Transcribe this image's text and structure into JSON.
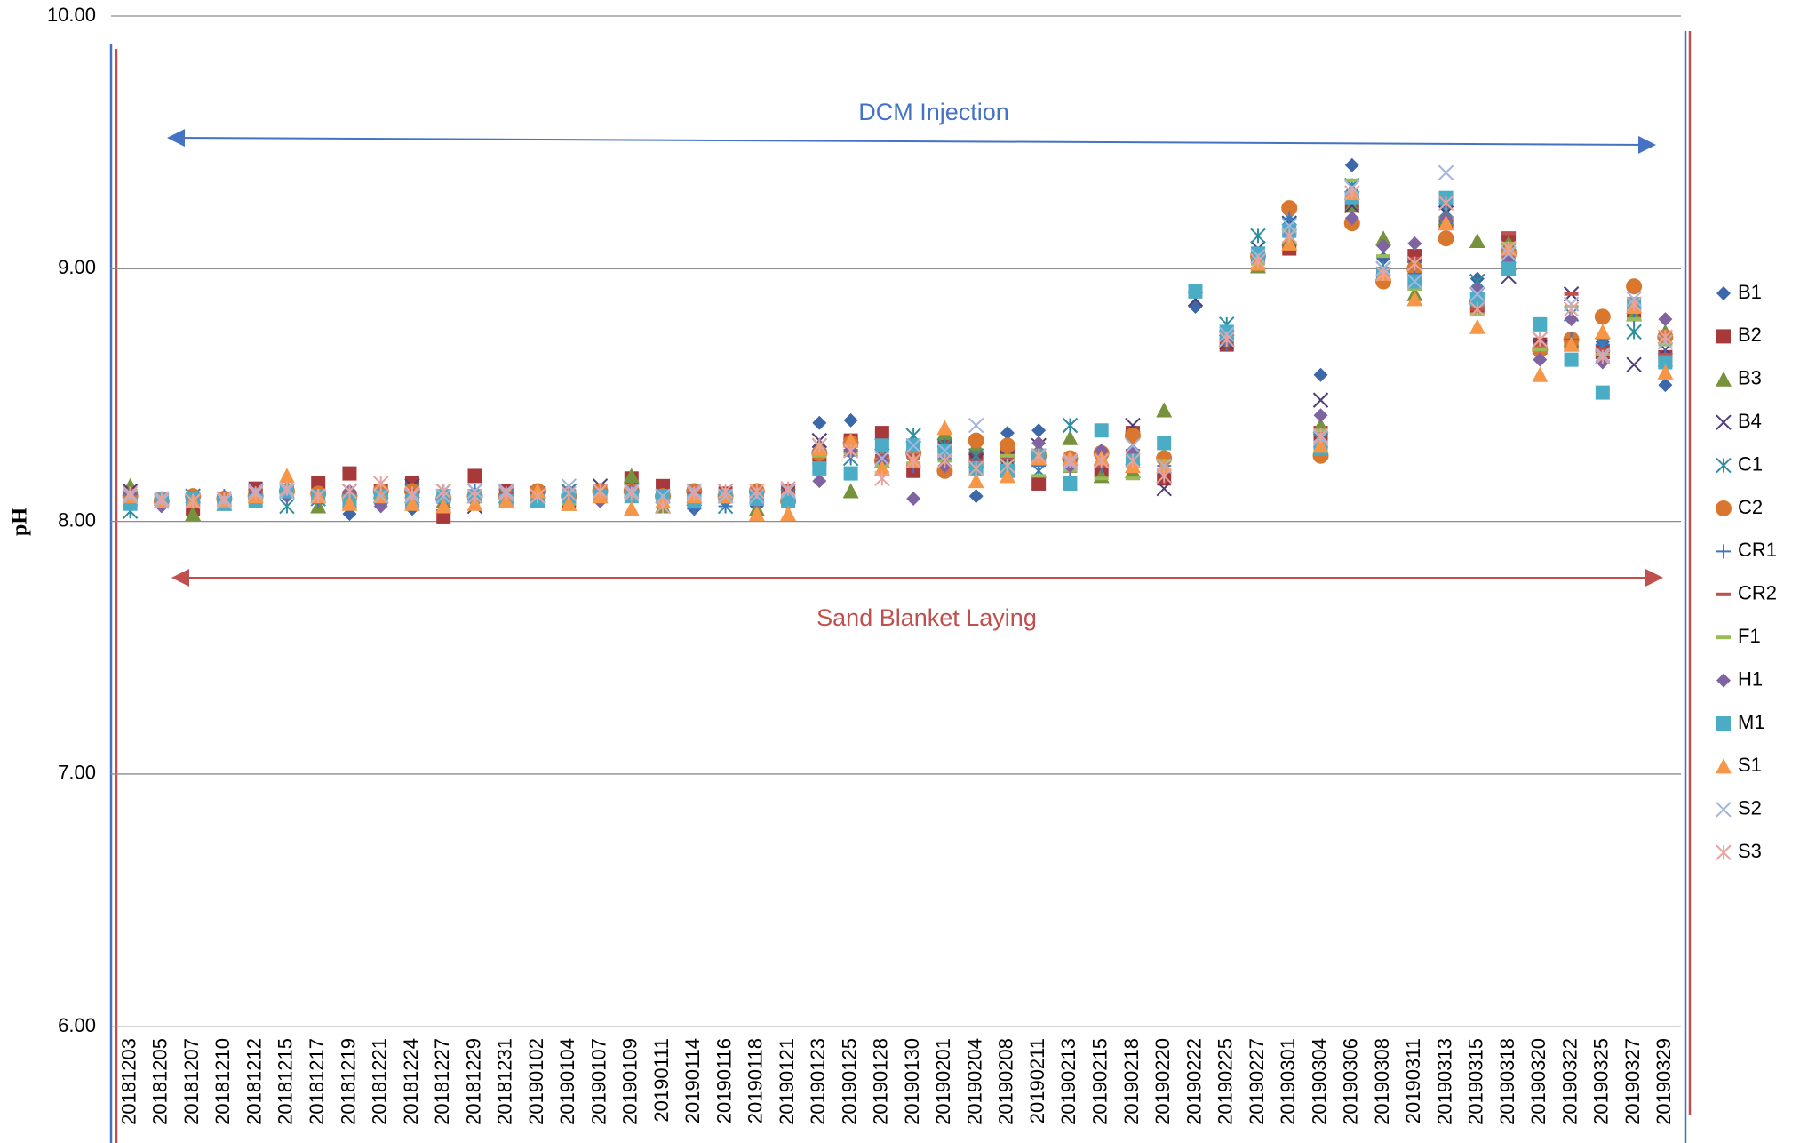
{
  "chart_data": {
    "type": "scatter",
    "y_label": "pH",
    "annotations": [
      "DCM Injection",
      "Sand Blanket Laying"
    ],
    "categories": [
      "20181203",
      "20181205",
      "20181207",
      "20181210",
      "20181212",
      "20181215",
      "20181217",
      "20181219",
      "20181221",
      "20181224",
      "20181227",
      "20181229",
      "20181231",
      "20190102",
      "20190104",
      "20190107",
      "20190109",
      "20190111",
      "20190114",
      "20190116",
      "20190118",
      "20190121",
      "20190123",
      "20190125",
      "20190128",
      "20190130",
      "20190201",
      "20190204",
      "20190208",
      "20190211",
      "20190213",
      "20190215",
      "20190218",
      "20190220",
      "20190222",
      "20190225",
      "20190227",
      "20190301",
      "20190304",
      "20190306",
      "20190308",
      "20190311",
      "20190313",
      "20190315",
      "20190318",
      "20190320",
      "20190322",
      "20190325",
      "20190327",
      "20190329"
    ],
    "ylim": [
      5.54,
      10
    ],
    "yticks": [
      {
        "value": 6,
        "label": "6.00"
      },
      {
        "value": 7,
        "label": "7.00"
      },
      {
        "value": 8,
        "label": "8.00"
      },
      {
        "value": 9,
        "label": "9.00"
      },
      {
        "value": 10,
        "label": "10.00"
      }
    ],
    "grid": true,
    "legend": "right",
    "series": [
      {
        "name": "B1",
        "color": "#3c67a8",
        "marker": "diamond",
        "values": [
          8.12,
          8.07,
          8.06,
          8.07,
          8.1,
          8.13,
          8.08,
          8.03,
          8.07,
          8.05,
          8.06,
          8.08,
          8.1,
          8.08,
          8.1,
          8.09,
          8.1,
          8.08,
          8.05,
          8.08,
          8.06,
          8.07,
          8.39,
          8.4,
          8.25,
          8.25,
          8.25,
          8.1,
          8.35,
          8.36,
          8.24,
          8.22,
          8.22,
          8.2,
          8.85,
          8.73,
          9.05,
          9.15,
          8.58,
          9.41,
          9.04,
          9.05,
          9.25,
          8.96,
          9.05,
          8.68,
          8.7,
          8.71,
          8.85,
          8.54
        ]
      },
      {
        "name": "B2",
        "color": "#a8393a",
        "marker": "square",
        "values": [
          8.1,
          8.08,
          8.05,
          8.08,
          8.13,
          8.12,
          8.15,
          8.19,
          8.12,
          8.15,
          8.02,
          8.18,
          8.12,
          8.1,
          8.08,
          8.12,
          8.17,
          8.14,
          8.1,
          8.11,
          8.1,
          8.12,
          8.25,
          8.32,
          8.35,
          8.2,
          8.3,
          8.25,
          8.28,
          8.15,
          8.22,
          8.2,
          8.35,
          8.17,
          null,
          8.7,
          9.05,
          9.08,
          8.35,
          9.25,
          8.98,
          9.05,
          9.18,
          8.85,
          9.12,
          8.7,
          8.7,
          8.67,
          8.82,
          8.65
        ]
      },
      {
        "name": "B3",
        "color": "#76923c",
        "marker": "triangle",
        "values": [
          8.14,
          8.09,
          8.03,
          8.07,
          8.11,
          8.12,
          8.06,
          8.08,
          8.12,
          8.1,
          8.08,
          8.1,
          8.1,
          8.12,
          8.07,
          8.1,
          8.18,
          8.06,
          8.09,
          8.1,
          8.05,
          8.1,
          8.3,
          8.12,
          8.24,
          8.3,
          8.35,
          8.3,
          8.26,
          8.28,
          8.33,
          8.18,
          8.2,
          8.44,
          null,
          8.72,
          9.01,
          9.12,
          8.38,
          9.25,
          9.12,
          8.9,
          9.2,
          9.11,
          9.1,
          8.7,
          8.72,
          8.65,
          8.82,
          8.75
        ]
      },
      {
        "name": "B4",
        "color": "#4f3d7a",
        "marker": "x",
        "values": [
          8.12,
          8.08,
          8.1,
          8.09,
          8.12,
          8.12,
          8.1,
          8.12,
          8.1,
          8.14,
          8.1,
          8.06,
          8.12,
          8.11,
          8.12,
          8.14,
          8.12,
          8.1,
          8.1,
          8.12,
          8.1,
          8.12,
          8.32,
          8.3,
          8.26,
          8.29,
          8.27,
          8.24,
          8.25,
          8.3,
          8.38,
          8.25,
          8.38,
          8.13,
          8.88,
          8.71,
          9.08,
          9.18,
          8.48,
          9.25,
          9.0,
          9.02,
          9.22,
          8.95,
          8.97,
          8.69,
          8.9,
          8.7,
          8.62,
          8.68
        ]
      },
      {
        "name": "C1",
        "color": "#2f8ea0",
        "marker": "asterisk",
        "values": [
          8.04,
          8.08,
          8.1,
          8.08,
          8.1,
          8.06,
          8.09,
          8.12,
          8.1,
          8.12,
          8.12,
          8.12,
          8.1,
          8.1,
          8.12,
          8.12,
          8.12,
          8.1,
          8.1,
          8.06,
          8.1,
          8.1,
          8.3,
          8.25,
          8.3,
          8.34,
          8.3,
          8.26,
          8.22,
          8.2,
          8.38,
          8.25,
          8.25,
          8.22,
          null,
          8.78,
          9.13,
          9.2,
          8.32,
          9.33,
          9.0,
          9.0,
          9.23,
          8.95,
          9.05,
          8.72,
          8.82,
          8.7,
          8.75,
          8.64
        ]
      },
      {
        "name": "C2",
        "color": "#d9772f",
        "marker": "circle",
        "values": [
          8.1,
          8.08,
          8.1,
          8.09,
          8.1,
          8.12,
          8.11,
          8.1,
          8.12,
          8.12,
          8.09,
          8.1,
          8.1,
          8.12,
          8.1,
          8.12,
          8.12,
          8.1,
          8.12,
          8.1,
          8.12,
          8.08,
          8.27,
          8.31,
          8.24,
          8.27,
          8.2,
          8.32,
          8.3,
          8.26,
          8.25,
          8.27,
          8.34,
          8.25,
          null,
          null,
          9.05,
          9.24,
          8.26,
          9.18,
          8.95,
          9.0,
          9.12,
          8.87,
          9.06,
          8.68,
          8.72,
          8.81,
          8.93,
          8.73
        ]
      },
      {
        "name": "CR1",
        "color": "#4472c4",
        "marker": "plus",
        "values": [
          8.08,
          8.08,
          8.08,
          8.1,
          8.1,
          8.1,
          8.08,
          8.08,
          8.09,
          8.1,
          8.08,
          8.12,
          8.1,
          8.1,
          8.1,
          8.1,
          8.1,
          8.08,
          8.05,
          8.06,
          8.1,
          8.08,
          8.28,
          8.26,
          8.24,
          8.22,
          8.25,
          8.22,
          8.22,
          8.22,
          8.2,
          8.22,
          8.25,
          8.22,
          null,
          8.7,
          9.04,
          9.2,
          8.32,
          9.3,
          8.98,
          8.98,
          9.18,
          8.9,
          9.02,
          8.7,
          8.72,
          8.7,
          8.8,
          8.66
        ]
      },
      {
        "name": "CR2",
        "color": "#c0504d",
        "marker": "dash",
        "values": [
          8.11,
          8.09,
          8.09,
          8.08,
          8.12,
          8.11,
          8.12,
          8.11,
          8.11,
          8.12,
          8.1,
          8.12,
          8.11,
          8.11,
          8.12,
          8.12,
          8.13,
          8.12,
          8.11,
          8.11,
          8.1,
          8.11,
          8.27,
          8.28,
          8.26,
          8.26,
          8.28,
          8.24,
          8.25,
          8.24,
          8.24,
          8.22,
          8.28,
          8.2,
          null,
          8.72,
          9.06,
          9.14,
          8.36,
          9.28,
          9.0,
          9.04,
          9.2,
          8.84,
          9.14,
          8.7,
          8.9,
          8.68,
          8.84,
          8.66
        ]
      },
      {
        "name": "F1",
        "color": "#9bbb59",
        "marker": "dash",
        "values": [
          8.09,
          8.08,
          8.07,
          8.08,
          8.1,
          8.1,
          8.08,
          8.08,
          8.1,
          8.09,
          8.08,
          8.09,
          8.09,
          8.08,
          8.07,
          8.1,
          8.1,
          8.09,
          8.09,
          8.09,
          8.07,
          8.08,
          8.26,
          8.27,
          8.22,
          8.23,
          8.24,
          8.22,
          8.26,
          8.18,
          8.2,
          8.17,
          8.17,
          8.24,
          null,
          8.72,
          9.02,
          9.14,
          8.36,
          9.35,
          9.05,
          8.92,
          9.2,
          8.82,
          9.1,
          8.68,
          8.85,
          8.66,
          8.8,
          8.7
        ]
      },
      {
        "name": "H1",
        "color": "#8064a2",
        "marker": "diamond",
        "values": [
          8.11,
          8.06,
          8.08,
          8.08,
          8.11,
          8.1,
          8.1,
          8.12,
          8.06,
          8.08,
          8.08,
          8.1,
          8.1,
          8.08,
          8.12,
          8.08,
          8.12,
          8.1,
          8.1,
          8.1,
          8.08,
          8.09,
          8.16,
          8.28,
          8.24,
          8.09,
          8.22,
          8.22,
          8.2,
          8.31,
          8.22,
          8.28,
          8.28,
          8.2,
          null,
          8.72,
          9.05,
          9.15,
          8.42,
          9.2,
          9.09,
          9.1,
          9.2,
          8.92,
          9.04,
          8.64,
          8.8,
          8.63,
          8.86,
          8.8
        ]
      },
      {
        "name": "M1",
        "color": "#4bacc6",
        "marker": "square",
        "values": [
          8.07,
          8.09,
          8.09,
          8.07,
          8.08,
          8.12,
          8.1,
          8.08,
          8.1,
          8.08,
          8.1,
          8.1,
          8.08,
          8.08,
          8.1,
          8.1,
          8.1,
          8.1,
          8.08,
          8.1,
          8.09,
          8.08,
          8.21,
          8.19,
          8.3,
          8.3,
          8.28,
          8.21,
          8.2,
          8.26,
          8.15,
          8.36,
          8.24,
          8.31,
          8.91,
          8.75,
          9.06,
          9.15,
          8.29,
          9.28,
          8.98,
          8.95,
          9.28,
          8.88,
          9.0,
          8.78,
          8.64,
          8.51,
          8.86,
          8.63
        ]
      },
      {
        "name": "S1",
        "color": "#f79646",
        "marker": "triangle",
        "values": [
          8.1,
          8.08,
          8.08,
          8.08,
          8.1,
          8.18,
          8.1,
          8.07,
          8.1,
          8.07,
          8.06,
          8.07,
          8.08,
          8.12,
          8.07,
          8.1,
          8.05,
          8.08,
          8.1,
          8.1,
          8.03,
          8.03,
          8.29,
          8.32,
          8.21,
          8.24,
          8.37,
          8.16,
          8.18,
          8.25,
          8.25,
          8.25,
          8.22,
          8.22,
          null,
          null,
          9.02,
          9.1,
          8.3,
          9.3,
          8.98,
          8.88,
          9.18,
          8.77,
          9.08,
          8.58,
          8.7,
          8.75,
          8.85,
          8.59
        ]
      },
      {
        "name": "S2",
        "color": "#a5b5dd",
        "marker": "x",
        "values": [
          8.1,
          8.08,
          8.08,
          8.08,
          8.12,
          8.12,
          8.1,
          8.12,
          8.1,
          8.1,
          8.1,
          8.12,
          8.12,
          8.1,
          8.14,
          8.12,
          8.12,
          8.1,
          8.12,
          8.1,
          8.1,
          8.12,
          8.3,
          8.28,
          8.25,
          8.3,
          8.28,
          8.38,
          8.22,
          8.26,
          8.23,
          8.24,
          8.3,
          8.22,
          null,
          8.74,
          9.05,
          9.17,
          8.33,
          9.32,
          9.0,
          8.95,
          9.38,
          8.9,
          9.06,
          8.72,
          8.86,
          8.66,
          8.88,
          8.71
        ]
      },
      {
        "name": "S3",
        "color": "#e6a3a0",
        "marker": "asterisk",
        "values": [
          8.11,
          8.09,
          8.08,
          8.09,
          8.11,
          8.13,
          8.1,
          8.12,
          8.15,
          8.11,
          8.12,
          8.1,
          8.11,
          8.1,
          8.11,
          8.12,
          8.11,
          8.06,
          8.11,
          8.12,
          8.12,
          8.13,
          8.3,
          8.28,
          8.17,
          8.24,
          8.24,
          8.21,
          8.22,
          8.26,
          8.24,
          8.24,
          8.24,
          8.18,
          null,
          8.72,
          9.03,
          9.13,
          8.34,
          9.3,
          8.98,
          9.02,
          9.26,
          8.84,
          9.08,
          8.72,
          8.84,
          8.65,
          8.86,
          8.73
        ]
      }
    ]
  }
}
